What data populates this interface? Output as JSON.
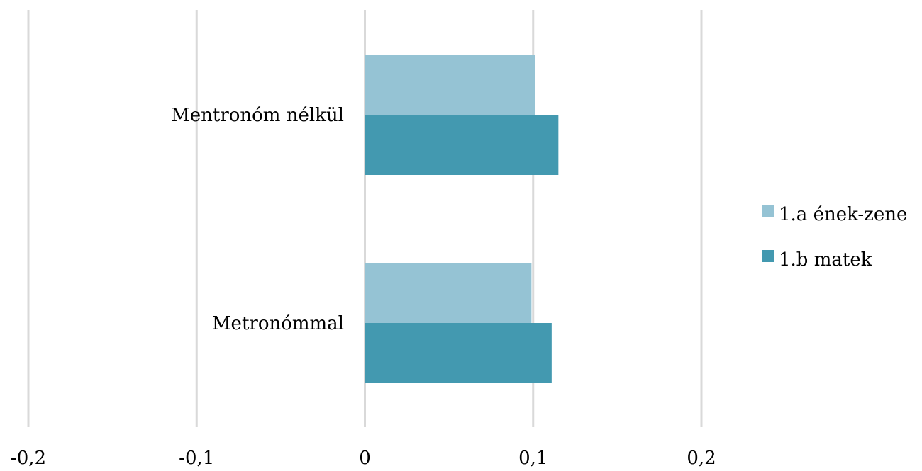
{
  "chart_data": {
    "type": "bar",
    "orientation": "horizontal",
    "title": "",
    "xlabel": "",
    "ylabel": "",
    "categories": [
      "Mentronóm nélkül",
      "Metronómmal"
    ],
    "series": [
      {
        "name": "1.a ének-zene",
        "color": "#95c3d4",
        "values": [
          0.101,
          0.099
        ]
      },
      {
        "name": "1.b matek",
        "color": "#4399b0",
        "values": [
          0.115,
          0.111
        ]
      }
    ],
    "xlim": [
      -0.2,
      0.2
    ],
    "x_ticks": [
      -0.2,
      -0.1,
      0,
      0.1,
      0.2
    ],
    "x_tick_labels": [
      "-0,2",
      "-0,1",
      "0",
      "0,1",
      "0,2"
    ],
    "grid": "vertical",
    "grid_color": "#d9d9d9",
    "legend_position": "right"
  }
}
